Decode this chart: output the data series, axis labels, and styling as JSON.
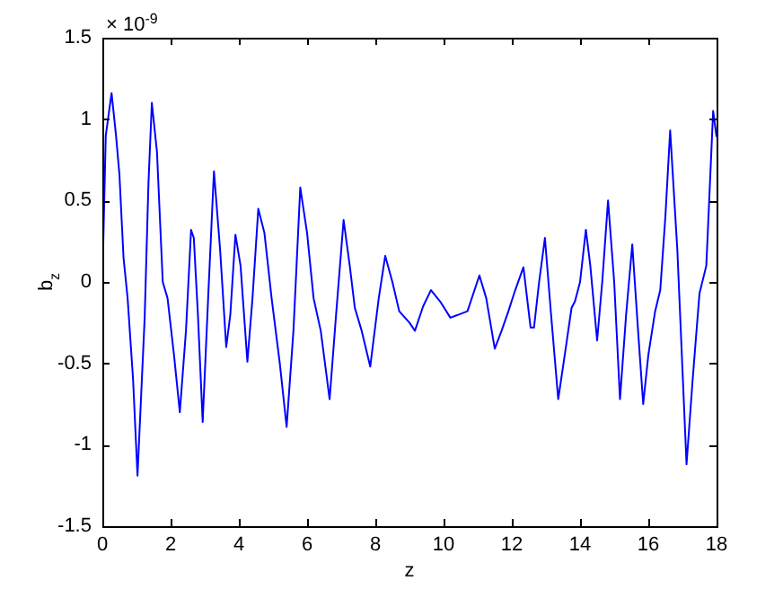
{
  "chart_data": {
    "type": "line",
    "xlabel": "z",
    "ylabel": "b$_{z}$",
    "annotations": [
      "× 10$^{-9}$"
    ],
    "xlim": [
      0,
      18
    ],
    "xticks": [
      0,
      2,
      4,
      6,
      8,
      10,
      12,
      14,
      16,
      18
    ],
    "ylim": [
      -1.5,
      1.5
    ],
    "yticks": [
      -1.5,
      -1,
      -0.5,
      0,
      0.5,
      1,
      1.5
    ],
    "grid": false,
    "legend": false,
    "marker": "none",
    "line_style": "solid",
    "series": [
      {
        "color": "#0000ff",
        "x": [
          0,
          0.1,
          0.27,
          0.4,
          0.5,
          0.62,
          0.74,
          0.9,
          1.03,
          1.24,
          1.35,
          1.45,
          1.6,
          1.77,
          1.91,
          2.1,
          2.27,
          2.45,
          2.6,
          2.68,
          2.8,
          2.94,
          3.1,
          3.27,
          3.45,
          3.63,
          3.75,
          3.9,
          4.05,
          4.25,
          4.4,
          4.57,
          4.75,
          4.96,
          5.2,
          5.4,
          5.6,
          5.8,
          6.0,
          6.19,
          6.4,
          6.66,
          6.85,
          7.07,
          7.25,
          7.4,
          7.6,
          7.85,
          8.1,
          8.29,
          8.5,
          8.7,
          9.0,
          9.16,
          9.4,
          9.63,
          9.9,
          10.2,
          10.7,
          11.05,
          11.25,
          11.5,
          11.7,
          11.9,
          12.1,
          12.34,
          12.55,
          12.65,
          12.8,
          12.97,
          13.15,
          13.36,
          13.55,
          13.75,
          13.85,
          14.0,
          14.17,
          14.3,
          14.5,
          14.65,
          14.82,
          15.0,
          15.17,
          15.35,
          15.53,
          15.7,
          15.85,
          16.0,
          16.2,
          16.35,
          16.5,
          16.64,
          16.85,
          17.12,
          17.3,
          17.5,
          17.7,
          17.9,
          18
        ],
        "values": [
          0,
          0.9,
          1.16,
          0.9,
          0.66,
          0.15,
          -0.1,
          -0.6,
          -1.19,
          -0.22,
          0.6,
          1.1,
          0.8,
          0,
          -0.1,
          -0.45,
          -0.8,
          -0.3,
          0.32,
          0.27,
          -0.2,
          -0.86,
          -0.1,
          0.68,
          0.2,
          -0.4,
          -0.2,
          0.29,
          0.1,
          -0.49,
          -0.1,
          0.45,
          0.3,
          -0.1,
          -0.5,
          -0.89,
          -0.3,
          0.58,
          0.3,
          -0.1,
          -0.3,
          -0.72,
          -0.2,
          0.38,
          0.1,
          -0.16,
          -0.3,
          -0.52,
          -0.1,
          0.16,
          0,
          -0.18,
          -0.25,
          -0.3,
          -0.15,
          -0.05,
          -0.12,
          -0.22,
          -0.18,
          0.04,
          -0.1,
          -0.41,
          -0.3,
          -0.18,
          -0.05,
          0.09,
          -0.28,
          -0.28,
          0,
          0.27,
          -0.2,
          -0.72,
          -0.45,
          -0.16,
          -0.12,
          0,
          0.32,
          0.1,
          -0.36,
          0,
          0.5,
          0,
          -0.72,
          -0.2,
          0.23,
          -0.3,
          -0.75,
          -0.45,
          -0.18,
          -0.05,
          0.4,
          0.93,
          0.2,
          -1.12,
          -0.6,
          -0.07,
          0.1,
          1.05,
          0.89
        ]
      }
    ]
  }
}
